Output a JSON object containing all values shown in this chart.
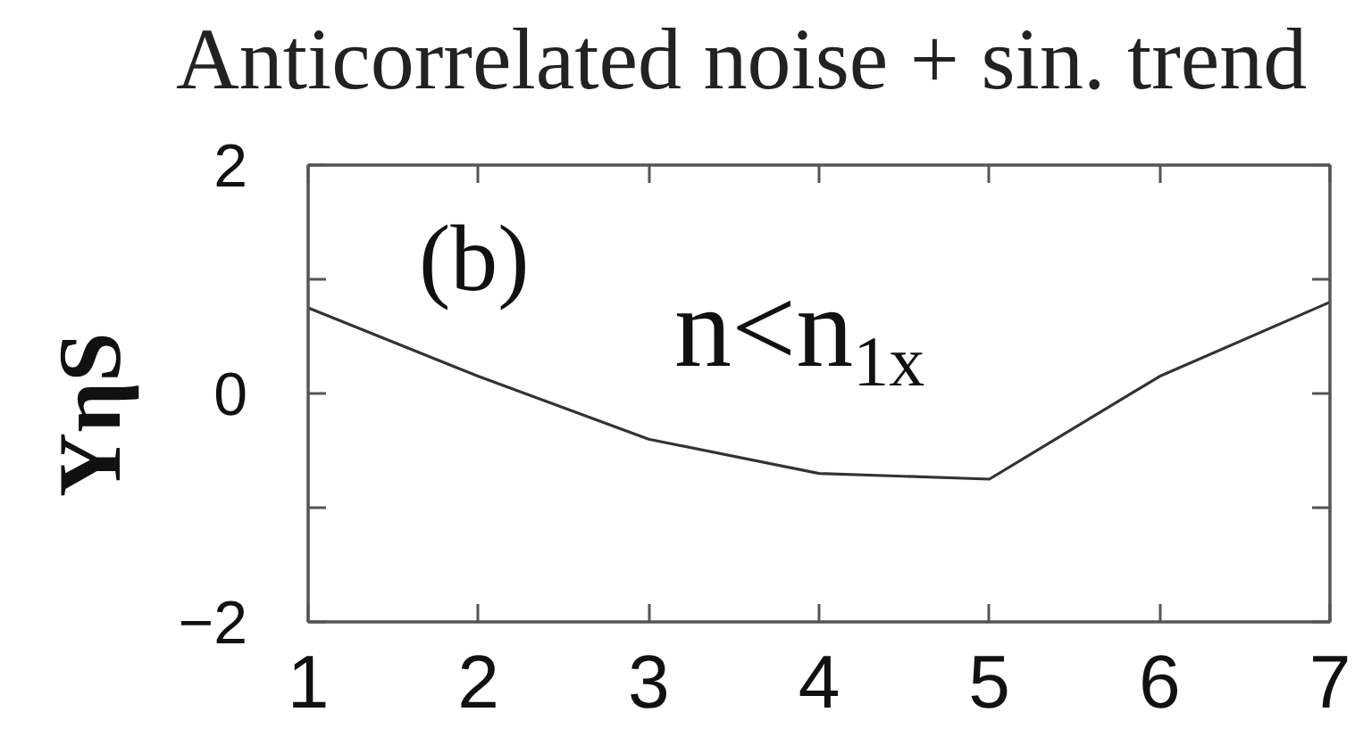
{
  "chart_data": {
    "type": "line",
    "title": "Anticorrelated noise + sin. trend",
    "ylabel": "YηS",
    "annotations": [
      "(b)",
      "n<n$_{1x}$"
    ],
    "x": [
      1,
      2,
      3,
      4,
      5,
      6,
      7
    ],
    "values": [
      0.75,
      0.15,
      -0.4,
      -0.7,
      -0.75,
      0.15,
      0.8
    ],
    "color": "#333333",
    "xlim": [
      1,
      7
    ],
    "ylim": [
      -2,
      2
    ],
    "xticks": [
      1,
      2,
      3,
      4,
      5,
      6,
      7
    ],
    "yticks": [
      -2,
      {
        "value": -1,
        "label": null
      },
      0,
      {
        "value": 1,
        "label": null
      },
      2
    ]
  }
}
